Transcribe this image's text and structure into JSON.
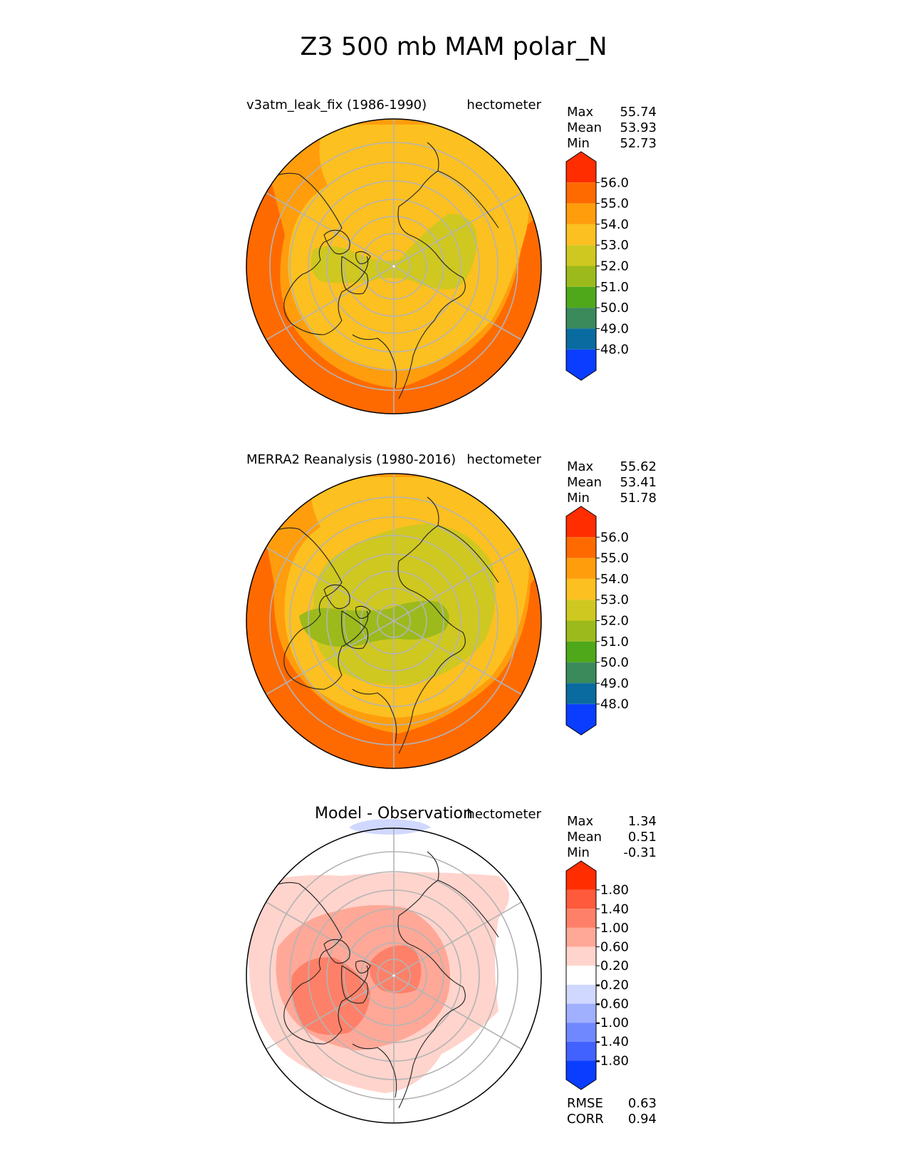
{
  "figure": {
    "title": "Z3 500 mb MAM polar_N"
  },
  "colors": {
    "gridline": "#b4b4b4",
    "outline": "#000000",
    "land": "#222222"
  },
  "chart_data": [
    {
      "type": "heatmap",
      "projection": "north-polar-stereographic",
      "title_left": "v3atm_leak_fix (1986-1990)",
      "units": "hectometer",
      "variable": "Z3 500 mb",
      "season": "MAM",
      "stats": [
        {
          "label": "Max",
          "value": "55.74"
        },
        {
          "label": "Mean",
          "value": "53.93"
        },
        {
          "label": "Min",
          "value": "52.73"
        }
      ],
      "colorbar": {
        "ticks": [
          "56.0",
          "55.0",
          "54.0",
          "53.0",
          "52.0",
          "51.0",
          "50.0",
          "49.0",
          "48.0"
        ],
        "extend": "both",
        "colors": [
          "#ff2d00",
          "#ff6a00",
          "#ff9d0d",
          "#fcc020",
          "#cfc820",
          "#9cba1c",
          "#4fa81a",
          "#3a8a5c",
          "#0a6ba0",
          "#0a3dff"
        ]
      },
      "regions": [
        {
          "level": "54.0-55.0",
          "color": "#ff9d0d"
        },
        {
          "level": "53.0-54.0",
          "color": "#fcc020"
        },
        {
          "level": "52.0-53.0",
          "color": "#cfc820"
        },
        {
          "level": "55.0-56.0",
          "color": "#ff6a00"
        }
      ]
    },
    {
      "type": "heatmap",
      "projection": "north-polar-stereographic",
      "title_left": "MERRA2 Reanalysis (1980-2016)",
      "units": "hectometer",
      "variable": "Z3 500 mb",
      "season": "MAM",
      "stats": [
        {
          "label": "Max",
          "value": "55.62"
        },
        {
          "label": "Mean",
          "value": "53.41"
        },
        {
          "label": "Min",
          "value": "51.78"
        }
      ],
      "colorbar": {
        "ticks": [
          "56.0",
          "55.0",
          "54.0",
          "53.0",
          "52.0",
          "51.0",
          "50.0",
          "49.0",
          "48.0"
        ],
        "extend": "both",
        "colors": [
          "#ff2d00",
          "#ff6a00",
          "#ff9d0d",
          "#fcc020",
          "#cfc820",
          "#9cba1c",
          "#4fa81a",
          "#3a8a5c",
          "#0a6ba0",
          "#0a3dff"
        ]
      },
      "regions": [
        {
          "level": "54.0-55.0",
          "color": "#ff9d0d"
        },
        {
          "level": "53.0-54.0",
          "color": "#fcc020"
        },
        {
          "level": "52.0-53.0",
          "color": "#cfc820"
        },
        {
          "level": "51.0-52.0",
          "color": "#9cba1c"
        }
      ]
    },
    {
      "type": "heatmap",
      "projection": "north-polar-stereographic",
      "title_center": "Model - Observation",
      "units": "hectometer",
      "variable": "Z3 500 mb difference",
      "season": "MAM",
      "stats": [
        {
          "label": "Max",
          "value": "1.34"
        },
        {
          "label": "Mean",
          "value": "0.51"
        },
        {
          "label": "Min",
          "value": "-0.31"
        }
      ],
      "extra_stats": [
        {
          "label": "RMSE",
          "value": "0.63"
        },
        {
          "label": "CORR",
          "value": "0.94"
        }
      ],
      "colorbar": {
        "ticks": [
          "1.80",
          "1.40",
          "1.00",
          "0.60",
          "0.20",
          "-0.20",
          "-0.60",
          "-1.00",
          "-1.40",
          "-1.80"
        ],
        "extend": "both",
        "colors": [
          "#ff2d00",
          "#ff5a3c",
          "#ff8068",
          "#ffa898",
          "#ffd4cc",
          "#ffffff",
          "#d0d8ff",
          "#a0b0ff",
          "#7088ff",
          "#4262ff",
          "#0a3dff"
        ]
      },
      "regions": [
        {
          "level": "0.20-0.60",
          "color": "#ffd4cc"
        },
        {
          "level": "0.60-1.00",
          "color": "#ffa898"
        },
        {
          "level": "1.00-1.40",
          "color": "#ff8068"
        },
        {
          "level": "-0.60--0.20",
          "color": "#d0d8ff"
        }
      ]
    }
  ]
}
